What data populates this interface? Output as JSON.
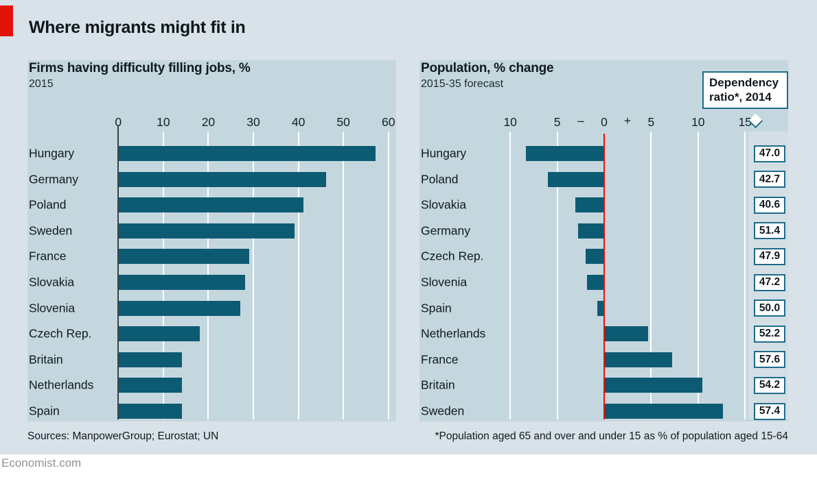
{
  "header": {
    "title": "Where migrants might fit in"
  },
  "footer": {
    "sources": "Sources: ManpowerGroup; Eurostat; UN",
    "footnote": "*Population aged 65 and over and under 15 as % of population aged 15-64",
    "site": "Economist.com"
  },
  "colors": {
    "accent_red": "#e3120b",
    "bar_teal": "#0d5a73",
    "panel_bg": "#c5d7de",
    "outer_bg": "#d8e2e8",
    "strip_bg": "#d4dfe5",
    "box_border_teal": "#1e6b89",
    "zero_axis_dark": "#3b3f42",
    "gridline_white": "#ffffff",
    "site_gray": "#8d9296"
  },
  "chart_data": [
    {
      "type": "bar",
      "orientation": "horizontal",
      "title": "Firms having difficulty filling jobs, %",
      "subtitle": "2015",
      "categories": [
        "Hungary",
        "Germany",
        "Poland",
        "Sweden",
        "France",
        "Slovakia",
        "Slovenia",
        "Czech Rep.",
        "Britain",
        "Netherlands",
        "Spain"
      ],
      "values": [
        57,
        46,
        41,
        39,
        29,
        28,
        27,
        18,
        14,
        14,
        14
      ],
      "xlim": [
        0,
        60
      ],
      "xticks": [
        0,
        10,
        20,
        30,
        40,
        50,
        60
      ],
      "grid": true,
      "legend": "none"
    },
    {
      "type": "bar",
      "orientation": "horizontal",
      "title": "Population, % change",
      "subtitle": "2015-35 forecast",
      "categories": [
        "Hungary",
        "Poland",
        "Slovakia",
        "Germany",
        "Czech Rep.",
        "Slovenia",
        "Spain",
        "Netherlands",
        "France",
        "Britain",
        "Sweden"
      ],
      "values": [
        -8.3,
        -6.0,
        -3.1,
        -2.8,
        -2.0,
        -1.8,
        -0.7,
        4.6,
        7.2,
        10.4,
        12.6
      ],
      "xlim": [
        -12.5,
        15
      ],
      "xticks": [
        -10,
        -5,
        0,
        5,
        10,
        15
      ],
      "minus_label": "–",
      "plus_label": "+",
      "zero_line_color": "#e3120b",
      "grid": true,
      "callout_lines": [
        "Dependency",
        "ratio*, 2014"
      ],
      "secondary_series": {
        "name": "Dependency ratio*, 2014",
        "values": [
          "47.0",
          "42.7",
          "40.6",
          "51.4",
          "47.9",
          "47.2",
          "50.0",
          "52.2",
          "57.6",
          "54.2",
          "57.4"
        ]
      }
    }
  ]
}
